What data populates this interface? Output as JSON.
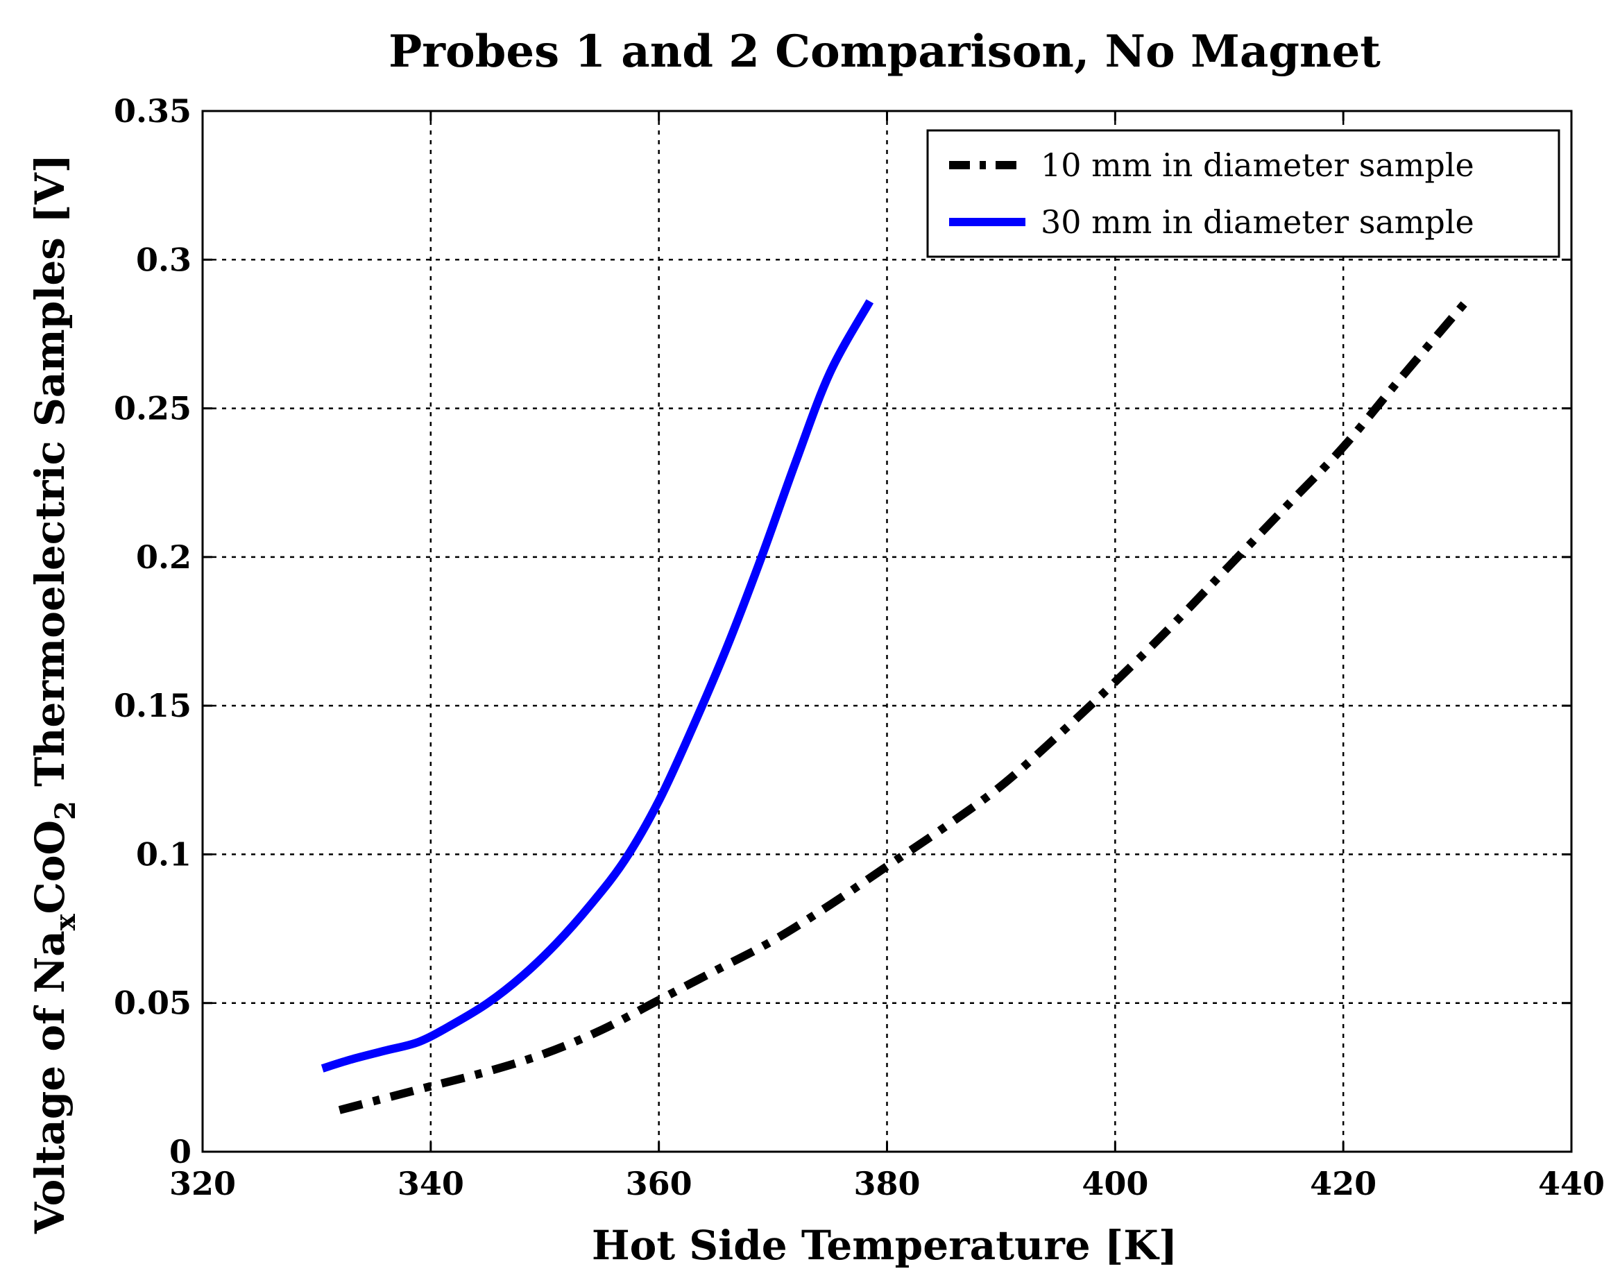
{
  "chart_data": {
    "type": "line",
    "title": "Probes 1 and 2 Comparison, No Magnet",
    "xlabel": "Hot Side Temperature [K]",
    "ylabel": {
      "prefix": "Voltage of Na",
      "subscript_1": "x",
      "middle": "CoO",
      "subscript_2": "2",
      "suffix": " Thermoelectric Samples [V]"
    },
    "xlim": [
      320,
      440
    ],
    "ylim": [
      0,
      0.35
    ],
    "x_ticks": [
      320,
      340,
      360,
      380,
      400,
      420,
      440
    ],
    "x_tick_labels": [
      "320",
      "340",
      "360",
      "380",
      "400",
      "420",
      "440"
    ],
    "y_ticks": [
      0,
      0.05,
      0.1,
      0.15,
      0.2,
      0.25,
      0.3,
      0.35
    ],
    "y_tick_labels": [
      "0",
      "0.05",
      "0.1",
      "0.15",
      "0.2",
      "0.25",
      "0.3",
      "0.35"
    ],
    "grid": true,
    "legend_position": "top-right",
    "series": [
      {
        "name": "10 mm in diameter sample",
        "color": "#000000",
        "style": "dash-dot",
        "x": [
          332,
          336,
          340,
          345,
          350,
          355,
          360,
          365,
          370,
          375,
          380,
          385,
          390,
          395,
          400,
          405,
          410,
          415,
          420,
          425,
          431
        ],
        "y": [
          0.014,
          0.018,
          0.022,
          0.027,
          0.033,
          0.041,
          0.051,
          0.061,
          0.071,
          0.083,
          0.096,
          0.109,
          0.123,
          0.14,
          0.158,
          0.177,
          0.197,
          0.217,
          0.237,
          0.26,
          0.287
        ]
      },
      {
        "name": "30 mm in diameter sample",
        "color": "#0000ff",
        "style": "solid",
        "x": [
          330.5,
          333,
          336,
          339,
          342,
          345,
          348,
          351,
          354,
          357,
          360,
          363,
          366,
          369,
          372,
          375,
          378.5
        ],
        "y": [
          0.028,
          0.031,
          0.034,
          0.037,
          0.043,
          0.05,
          0.059,
          0.07,
          0.083,
          0.098,
          0.118,
          0.143,
          0.17,
          0.2,
          0.232,
          0.262,
          0.286
        ]
      }
    ]
  }
}
